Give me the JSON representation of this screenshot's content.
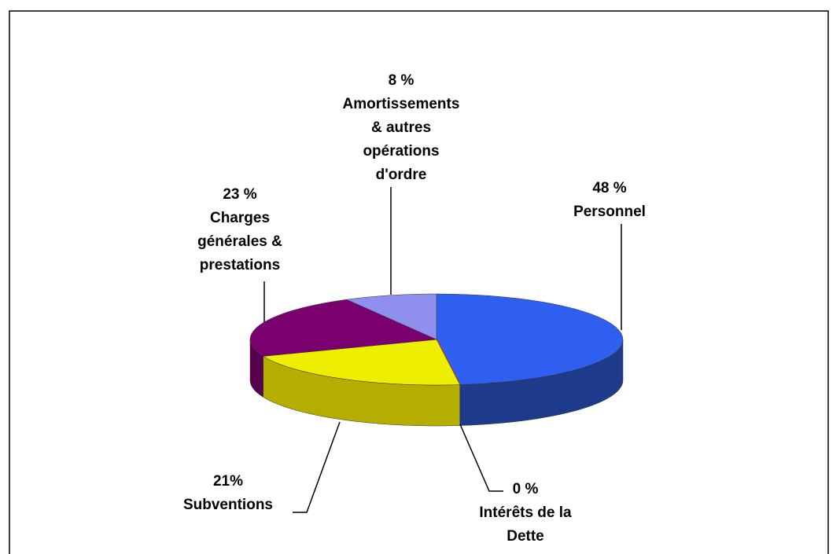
{
  "chart_data": {
    "type": "pie3d",
    "categories": [
      "Personnel",
      "Intérêts de la\nDette",
      "Subventions",
      "Charges\ngénérales &\nprestations",
      "Amortissements\n& autres\nopérations\nd'ordre"
    ],
    "values": [
      48,
      0,
      21,
      23,
      8
    ],
    "value_labels": [
      "48 %",
      "0 %",
      "21%",
      "23 %",
      "8 %"
    ],
    "colors": [
      "#2f5ff0",
      "#c0392b",
      "#eeee00",
      "#7a0070",
      "#8f8fee"
    ],
    "side_colors": [
      "#1e3a8a",
      "#8a2020",
      "#b5ae00",
      "#560050",
      "#6a6ac0"
    ]
  }
}
